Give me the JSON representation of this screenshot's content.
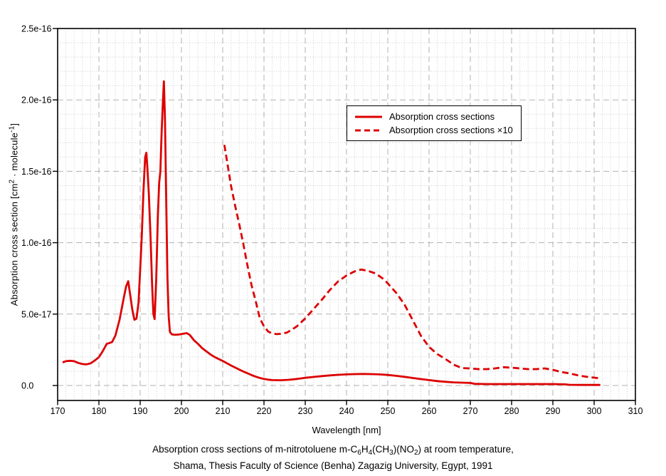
{
  "colors": {
    "curve_red": "#dd0000",
    "grid_minor": "#cbcbcb",
    "grid_major": "#b2b2b2",
    "axis": "#000000",
    "background": "#ffffff",
    "legend_border": "#000000"
  },
  "axes": {
    "x": {
      "label": "Wavelength [nm]",
      "tick_labels": [
        "170",
        "180",
        "190",
        "200",
        "210",
        "220",
        "230",
        "240",
        "250",
        "260",
        "270",
        "280",
        "290",
        "300",
        "310"
      ]
    },
    "y": {
      "label_parts": {
        "pre": "Absorption cross section [cm",
        "sup1": "2",
        "mid": " · molecule",
        "sup2": "-1",
        "post": "]"
      },
      "tick_labels": [
        "0.0",
        "5.0e-17",
        "1.0e-16",
        "1.5e-16",
        "2.0e-16",
        "2.5e-16"
      ]
    }
  },
  "legend": {
    "items": [
      {
        "label": "Absorption cross sections",
        "line_style": "solid"
      },
      {
        "label": "Absorption cross sections ×10",
        "line_style": "dashed"
      }
    ]
  },
  "caption": {
    "line1_parts": [
      {
        "text": "Absorption cross sections of m-nitrotoluene m-C",
        "sub": false
      },
      {
        "text": "6",
        "sub": true
      },
      {
        "text": "H",
        "sub": false
      },
      {
        "text": "4",
        "sub": true
      },
      {
        "text": "(CH",
        "sub": false
      },
      {
        "text": "3",
        "sub": true
      },
      {
        "text": ")(NO",
        "sub": false
      },
      {
        "text": "2",
        "sub": true
      },
      {
        "text": ") at room temperature,",
        "sub": false
      }
    ],
    "line2": "Shama, Thesis Faculty of Science (Benha) Zagazig University, Egypt, 1991"
  },
  "chart_data": {
    "type": "line",
    "title": "",
    "xlabel": "Wavelength [nm]",
    "ylabel": "Absorption cross section [cm2 · molecule-1]",
    "xlim": [
      170,
      310
    ],
    "ylim": [
      -1.05e-17,
      2.5e-16
    ],
    "x_major_tick_step": 10,
    "x_minor_tick_step": 2,
    "y_major_tick_step": 5e-17,
    "y_minor_tick_step": 1e-17,
    "x_major_ticks": [
      170,
      180,
      190,
      200,
      210,
      220,
      230,
      240,
      250,
      260,
      270,
      280,
      290,
      300,
      310
    ],
    "y_major_ticks_e17": [
      0,
      5,
      10,
      15,
      20,
      25
    ],
    "grid": "major-dashed and minor-dotted, both axes",
    "legend_position": "upper middle inside plot",
    "value_scale_note": "points store [wavelength_nm, cross_section in 1e-17 cm2/molecule]",
    "series": [
      {
        "name": "Absorption cross sections",
        "style": "solid",
        "color": "#dd0000",
        "points": [
          [
            171.2,
            1.62
          ],
          [
            172,
            1.7
          ],
          [
            173,
            1.73
          ],
          [
            174,
            1.7
          ],
          [
            175,
            1.58
          ],
          [
            176,
            1.5
          ],
          [
            177,
            1.48
          ],
          [
            178,
            1.55
          ],
          [
            179,
            1.75
          ],
          [
            180,
            1.98
          ],
          [
            180.7,
            2.3
          ],
          [
            181.4,
            2.65
          ],
          [
            181.9,
            2.92
          ],
          [
            182.6,
            2.98
          ],
          [
            183.2,
            3.05
          ],
          [
            184,
            3.5
          ],
          [
            185,
            4.6
          ],
          [
            186,
            6.1
          ],
          [
            186.6,
            6.95
          ],
          [
            187.1,
            7.3
          ],
          [
            187.6,
            6.3
          ],
          [
            188.1,
            5.3
          ],
          [
            188.6,
            4.6
          ],
          [
            189.1,
            4.68
          ],
          [
            189.6,
            5.8
          ],
          [
            190,
            8.1
          ],
          [
            190.4,
            10.5
          ],
          [
            190.8,
            13.6
          ],
          [
            191.2,
            16.0
          ],
          [
            191.5,
            16.3
          ],
          [
            191.8,
            15.0
          ],
          [
            192.1,
            13.4
          ],
          [
            192.5,
            10.5
          ],
          [
            192.9,
            7.0
          ],
          [
            193.2,
            5.0
          ],
          [
            193.5,
            4.65
          ],
          [
            193.9,
            7.5
          ],
          [
            194.3,
            11.9
          ],
          [
            194.6,
            14.2
          ],
          [
            194.9,
            15.0
          ],
          [
            195.2,
            17.8
          ],
          [
            195.5,
            19.8
          ],
          [
            195.75,
            21.3
          ],
          [
            196.0,
            18.8
          ],
          [
            196.3,
            13.4
          ],
          [
            196.6,
            7.6
          ],
          [
            196.9,
            4.9
          ],
          [
            197.2,
            3.75
          ],
          [
            197.7,
            3.58
          ],
          [
            198.5,
            3.55
          ],
          [
            199.5,
            3.58
          ],
          [
            200.5,
            3.63
          ],
          [
            201.3,
            3.67
          ],
          [
            202,
            3.55
          ],
          [
            203,
            3.18
          ],
          [
            204,
            2.92
          ],
          [
            205,
            2.62
          ],
          [
            206,
            2.4
          ],
          [
            207,
            2.18
          ],
          [
            208,
            2.0
          ],
          [
            209,
            1.86
          ],
          [
            210,
            1.72
          ],
          [
            211,
            1.56
          ],
          [
            212,
            1.4
          ],
          [
            213,
            1.26
          ],
          [
            214,
            1.12
          ],
          [
            215,
            0.98
          ],
          [
            216,
            0.86
          ],
          [
            217,
            0.73
          ],
          [
            218,
            0.62
          ],
          [
            219,
            0.53
          ],
          [
            220,
            0.46
          ],
          [
            221,
            0.41
          ],
          [
            222,
            0.38
          ],
          [
            224,
            0.37
          ],
          [
            226,
            0.4
          ],
          [
            228,
            0.46
          ],
          [
            230,
            0.54
          ],
          [
            232,
            0.6
          ],
          [
            234,
            0.66
          ],
          [
            236,
            0.71
          ],
          [
            238,
            0.75
          ],
          [
            240,
            0.78
          ],
          [
            242,
            0.8
          ],
          [
            244,
            0.81
          ],
          [
            246,
            0.8
          ],
          [
            248,
            0.78
          ],
          [
            250,
            0.74
          ],
          [
            252,
            0.68
          ],
          [
            254,
            0.61
          ],
          [
            256,
            0.53
          ],
          [
            258,
            0.45
          ],
          [
            260,
            0.38
          ],
          [
            262,
            0.31
          ],
          [
            264,
            0.26
          ],
          [
            266,
            0.22
          ],
          [
            268,
            0.2
          ],
          [
            270,
            0.18
          ],
          [
            271,
            0.12
          ],
          [
            274,
            0.1
          ],
          [
            278,
            0.1
          ],
          [
            282,
            0.1
          ],
          [
            286,
            0.1
          ],
          [
            290,
            0.1
          ],
          [
            293,
            0.08
          ],
          [
            294,
            0.05
          ],
          [
            297,
            0.04
          ],
          [
            301.5,
            0.04
          ]
        ]
      },
      {
        "name": "Absorption cross sections ×10",
        "style": "dashed",
        "color": "#dd0000",
        "points": [
          [
            210.4,
            16.85
          ],
          [
            211,
            15.8
          ],
          [
            212,
            14.0
          ],
          [
            213,
            12.6
          ],
          [
            214,
            11.3
          ],
          [
            215,
            9.9
          ],
          [
            216,
            8.4
          ],
          [
            217,
            7.0
          ],
          [
            218,
            5.9
          ],
          [
            219,
            4.7
          ],
          [
            220,
            4.15
          ],
          [
            221,
            3.78
          ],
          [
            222,
            3.65
          ],
          [
            223,
            3.6
          ],
          [
            224,
            3.62
          ],
          [
            225.5,
            3.7
          ],
          [
            227,
            3.95
          ],
          [
            228,
            4.15
          ],
          [
            230,
            4.7
          ],
          [
            232,
            5.35
          ],
          [
            234,
            6.0
          ],
          [
            236,
            6.7
          ],
          [
            238,
            7.3
          ],
          [
            240,
            7.7
          ],
          [
            242,
            8.0
          ],
          [
            243.5,
            8.12
          ],
          [
            245,
            8.05
          ],
          [
            247,
            7.85
          ],
          [
            249,
            7.45
          ],
          [
            250,
            7.15
          ],
          [
            252,
            6.5
          ],
          [
            254,
            5.7
          ],
          [
            256,
            4.6
          ],
          [
            258,
            3.5
          ],
          [
            260,
            2.7
          ],
          [
            262,
            2.2
          ],
          [
            264,
            1.85
          ],
          [
            266,
            1.45
          ],
          [
            268,
            1.22
          ],
          [
            270,
            1.2
          ],
          [
            272,
            1.15
          ],
          [
            274,
            1.15
          ],
          [
            276,
            1.2
          ],
          [
            278,
            1.28
          ],
          [
            280,
            1.25
          ],
          [
            282,
            1.2
          ],
          [
            284,
            1.15
          ],
          [
            286,
            1.15
          ],
          [
            288,
            1.2
          ],
          [
            290,
            1.1
          ],
          [
            292,
            0.95
          ],
          [
            294,
            0.85
          ],
          [
            296,
            0.72
          ],
          [
            298,
            0.62
          ],
          [
            300,
            0.55
          ],
          [
            301.5,
            0.5
          ]
        ]
      }
    ]
  }
}
